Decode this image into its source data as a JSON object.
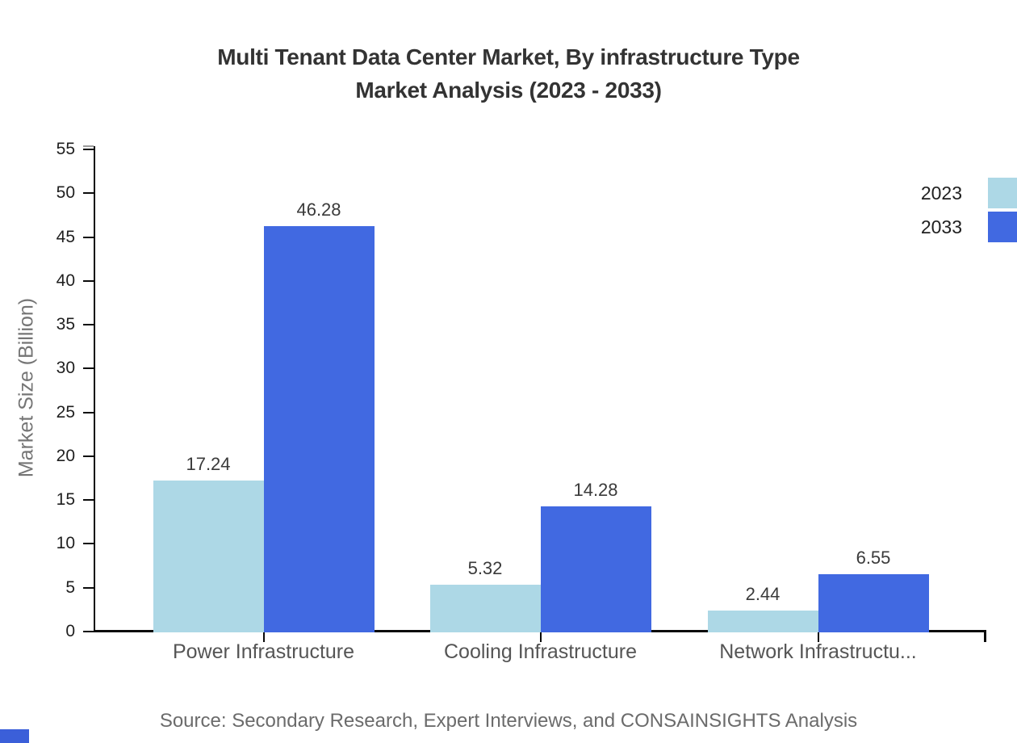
{
  "chart_data": {
    "type": "bar",
    "title_line1": "Multi Tenant Data Center Market, By infrastructure Type",
    "title_line2": "Market Analysis (2023 - 2033)",
    "ylabel": "Market Size (Billion)",
    "xlabel": "",
    "categories": [
      "Power Infrastructure",
      "Cooling Infrastructure",
      "Network Infrastructu..."
    ],
    "series": [
      {
        "name": "2023",
        "color": "#ADD8E6",
        "values": [
          17.24,
          5.32,
          2.44
        ]
      },
      {
        "name": "2033",
        "color": "#4169E1",
        "values": [
          46.28,
          14.28,
          6.55
        ]
      }
    ],
    "ylim": [
      0,
      55
    ],
    "yticks": [
      0,
      5,
      10,
      15,
      20,
      25,
      30,
      35,
      40,
      45,
      50,
      55
    ],
    "grid": false,
    "legend_position": "top-right",
    "value_label_decimals": 2
  },
  "source_note": "Source: Secondary Research, Expert Interviews, and CONSAINSIGHTS Analysis",
  "colors": {
    "series_2023": "#ADD8E6",
    "series_2033": "#4169E1",
    "title_text": "#333333",
    "axis": "#0b0b0b",
    "tick_label": "#1f1f1f",
    "category_label": "#555555",
    "value_label": "#3a3a3a",
    "source_text": "#6b6b6b",
    "ylabel_text": "#757575",
    "brand_mark": "#3b5fd9"
  }
}
